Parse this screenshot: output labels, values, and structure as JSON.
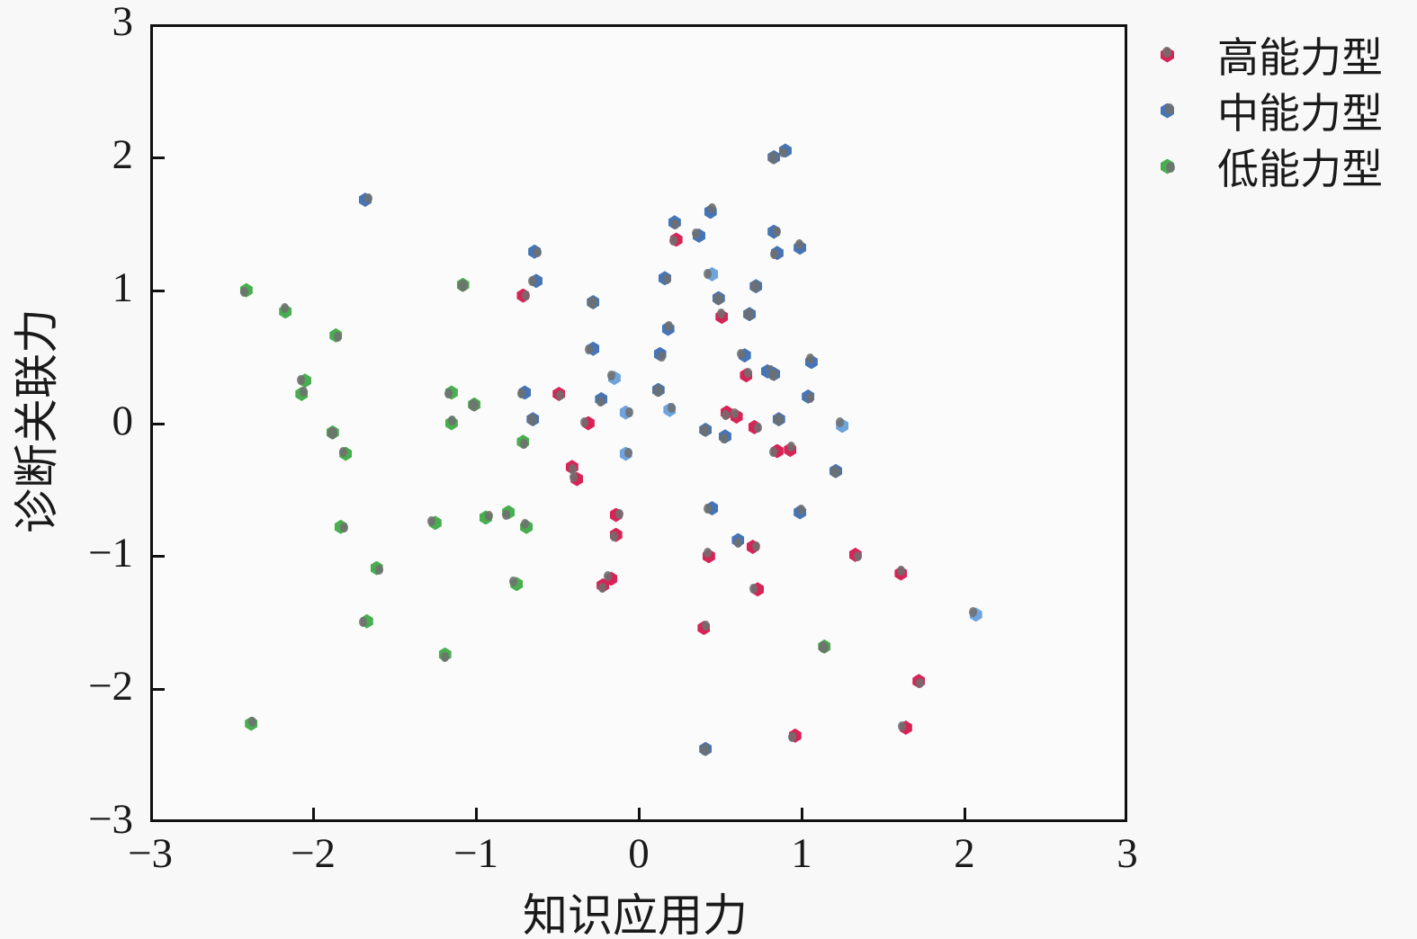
{
  "chart_data": {
    "type": "scatter",
    "title": "",
    "xlabel": "知识应用力",
    "ylabel": "诊断关联力",
    "xlim": [
      -3,
      3
    ],
    "ylim": [
      -3,
      3
    ],
    "x_tick_values": [
      -3,
      -2,
      -1,
      0,
      1,
      2,
      3
    ],
    "y_tick_values": [
      -3,
      -2,
      -1,
      0,
      1,
      2,
      3
    ],
    "x_tick_labels": [
      "−3",
      "−2",
      "−1",
      "0",
      "1",
      "2",
      "3"
    ],
    "y_tick_labels": [
      "−3",
      "−2",
      "−1",
      "0",
      "1",
      "2",
      "3"
    ],
    "grid": false,
    "legend_position": "outside-top-right",
    "marker_style": "hexagon dot with partial gray shading overlay",
    "shade_color": "#6f6f6f",
    "series": [
      {
        "name": "高能力型",
        "color": "#d62457",
        "halo": "rgba(255,160,190,0.30)",
        "points": [
          [
            -0.71,
            0.96,
            0
          ],
          [
            0.23,
            1.38,
            0
          ],
          [
            0.51,
            0.8,
            0
          ],
          [
            -0.49,
            0.22,
            0
          ],
          [
            -0.31,
            0.0,
            0
          ],
          [
            0.66,
            0.36,
            0
          ],
          [
            0.54,
            0.08,
            0
          ],
          [
            0.6,
            0.05,
            0
          ],
          [
            0.71,
            -0.03,
            0
          ],
          [
            0.85,
            -0.21,
            0
          ],
          [
            0.93,
            -0.2,
            0
          ],
          [
            -0.41,
            -0.33,
            0
          ],
          [
            -0.38,
            -0.42,
            0
          ],
          [
            -0.14,
            -0.69,
            0
          ],
          [
            -0.14,
            -0.84,
            0
          ],
          [
            0.43,
            -1.0,
            0
          ],
          [
            1.33,
            -0.99,
            0
          ],
          [
            0.73,
            -1.25,
            0
          ],
          [
            0.4,
            -1.54,
            0
          ],
          [
            -0.22,
            -1.22,
            0
          ],
          [
            -0.17,
            -1.17,
            0
          ],
          [
            0.7,
            -0.93,
            0
          ],
          [
            0.96,
            -2.35,
            0
          ],
          [
            1.61,
            -1.13,
            0
          ],
          [
            1.72,
            -1.94,
            0
          ],
          [
            1.64,
            -2.29,
            0
          ]
        ]
      },
      {
        "name": "中能力型",
        "color": "#4674b4",
        "color_light": "#6fa3dc",
        "halo": "rgba(140,210,255,0.35)",
        "points": [
          [
            -1.68,
            1.68,
            0
          ],
          [
            0.9,
            2.05,
            0
          ],
          [
            0.83,
            2.0,
            1
          ],
          [
            -0.64,
            1.29,
            0
          ],
          [
            -0.63,
            1.07,
            0
          ],
          [
            0.44,
            1.59,
            0
          ],
          [
            0.22,
            1.51,
            0
          ],
          [
            0.37,
            1.41,
            0
          ],
          [
            0.83,
            1.44,
            0
          ],
          [
            0.85,
            1.28,
            0
          ],
          [
            0.99,
            1.32,
            0
          ],
          [
            0.16,
            1.09,
            0
          ],
          [
            0.45,
            1.12,
            2
          ],
          [
            0.72,
            1.03,
            1
          ],
          [
            -0.28,
            0.91,
            1
          ],
          [
            0.49,
            0.94,
            1
          ],
          [
            0.68,
            0.82,
            1
          ],
          [
            -0.28,
            0.56,
            0
          ],
          [
            0.18,
            0.71,
            0
          ],
          [
            0.13,
            0.52,
            0
          ],
          [
            0.65,
            0.51,
            0
          ],
          [
            0.79,
            0.39,
            0
          ],
          [
            0.83,
            0.37,
            1
          ],
          [
            1.06,
            0.46,
            0
          ],
          [
            1.04,
            0.2,
            0
          ],
          [
            0.12,
            0.25,
            1
          ],
          [
            0.19,
            0.1,
            2
          ],
          [
            -0.23,
            0.18,
            0
          ],
          [
            -0.15,
            0.34,
            2
          ],
          [
            -0.08,
            0.08,
            2
          ],
          [
            -0.7,
            0.23,
            0
          ],
          [
            -0.65,
            0.03,
            1
          ],
          [
            0.86,
            0.03,
            1
          ],
          [
            0.41,
            -0.05,
            1
          ],
          [
            -0.08,
            -0.23,
            2
          ],
          [
            0.53,
            -0.1,
            0
          ],
          [
            1.25,
            -0.02,
            2
          ],
          [
            1.21,
            -0.36,
            1
          ],
          [
            0.45,
            -0.64,
            0
          ],
          [
            0.99,
            -0.67,
            0
          ],
          [
            0.61,
            -0.88,
            0
          ],
          [
            2.07,
            -1.44,
            2
          ],
          [
            0.41,
            -2.45,
            1
          ]
        ]
      },
      {
        "name": "低能力型",
        "color": "#49ae50",
        "halo": "rgba(170,235,140,0.40)",
        "points": [
          [
            -2.41,
            1.0,
            0
          ],
          [
            -2.17,
            0.84,
            0
          ],
          [
            -1.86,
            0.66,
            0
          ],
          [
            -2.05,
            0.32,
            0
          ],
          [
            -2.07,
            0.22,
            0
          ],
          [
            -1.88,
            -0.07,
            1
          ],
          [
            -1.8,
            -0.23,
            0
          ],
          [
            -1.83,
            -0.78,
            0
          ],
          [
            -1.15,
            0.23,
            0
          ],
          [
            -1.15,
            0.0,
            0
          ],
          [
            -0.71,
            -0.14,
            0
          ],
          [
            -1.25,
            -0.75,
            0
          ],
          [
            -0.94,
            -0.71,
            0
          ],
          [
            -0.8,
            -0.67,
            0
          ],
          [
            -0.69,
            -0.78,
            0
          ],
          [
            -1.61,
            -1.09,
            0
          ],
          [
            -1.67,
            -1.49,
            0
          ],
          [
            -2.38,
            -2.26,
            0
          ],
          [
            -1.19,
            -1.74,
            0
          ],
          [
            -0.75,
            -1.21,
            0
          ],
          [
            1.14,
            -1.68,
            1
          ],
          [
            -1.08,
            1.04,
            1
          ],
          [
            -1.01,
            0.14,
            1
          ]
        ]
      }
    ]
  },
  "colors": {
    "background": "#f8f8f8",
    "axis": "#111111",
    "text": "#1a1a1a"
  }
}
